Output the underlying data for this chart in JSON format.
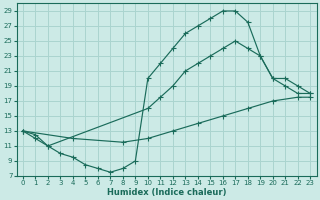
{
  "xlabel": "Humidex (Indice chaleur)",
  "bg_color": "#cceae6",
  "grid_color": "#aad4cf",
  "line_color": "#1a6b5a",
  "xlim": [
    -0.5,
    23.5
  ],
  "ylim": [
    7,
    30
  ],
  "xticks": [
    0,
    1,
    2,
    3,
    4,
    5,
    6,
    7,
    8,
    9,
    10,
    11,
    12,
    13,
    14,
    15,
    16,
    17,
    18,
    19,
    20,
    21,
    22,
    23
  ],
  "yticks": [
    7,
    9,
    11,
    13,
    15,
    17,
    19,
    21,
    23,
    25,
    27,
    29
  ],
  "line1_x": [
    0,
    1,
    2,
    3,
    4,
    5,
    6,
    7,
    8,
    9,
    10,
    11,
    12,
    13,
    14,
    15,
    16,
    17,
    18,
    19,
    20,
    21,
    22,
    23
  ],
  "line1_y": [
    13,
    12,
    11,
    10,
    9.5,
    8.5,
    8,
    7.5,
    8,
    9,
    20,
    22,
    24,
    26,
    27,
    28,
    29,
    29,
    27.5,
    23,
    20,
    19,
    18,
    18
  ],
  "line2_x": [
    0,
    1,
    2,
    10,
    11,
    12,
    13,
    14,
    15,
    16,
    17,
    18,
    19,
    20,
    21,
    22,
    23
  ],
  "line2_y": [
    13,
    12.5,
    11,
    16,
    17.5,
    19,
    21,
    22,
    23,
    24,
    25,
    24,
    23,
    20,
    20,
    19,
    18
  ],
  "line3_x": [
    0,
    4,
    8,
    10,
    12,
    14,
    16,
    18,
    20,
    22,
    23
  ],
  "line3_y": [
    13,
    12,
    11.5,
    12,
    13,
    14,
    15,
    16,
    17,
    17.5,
    17.5
  ]
}
